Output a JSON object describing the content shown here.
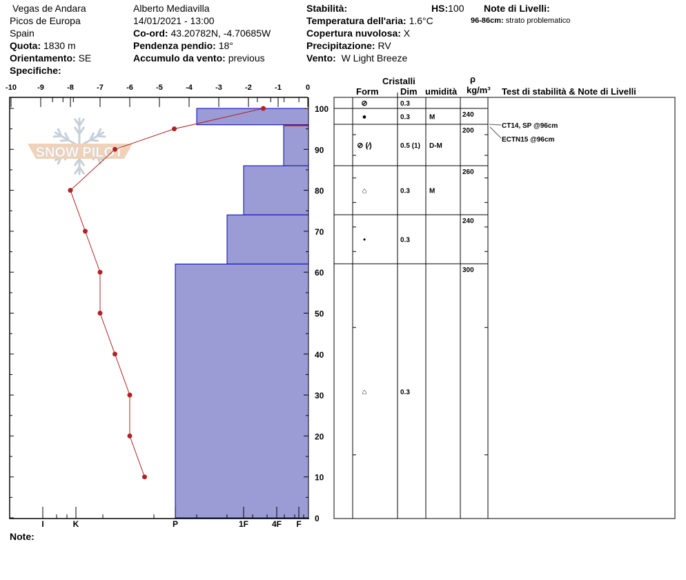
{
  "header": {
    "location": "Vegas de Andara",
    "range": "Picos de Europa",
    "country": "Spain",
    "quota_label": "Quota:",
    "quota": "1830 m",
    "orient_label": "Orientamento:",
    "orient": "SE",
    "spec_label": "Specifiche:",
    "observer": "Alberto Mediavilla",
    "datetime": "14/01/2021 - 13:00",
    "coord_label": "Co-ord:",
    "coord": "43.20782N, -4.70685W",
    "slope_label": "Pendenza pendio:",
    "slope": "18°",
    "wind_load_label": "Accumulo da vento:",
    "wind_load": "previous",
    "stab_label": "Stabilità:",
    "hs_label": "HS:",
    "hs": "100",
    "air_label": "Temperatura dell'aria:",
    "air": "1.6°C",
    "cloud_label": "Copertura nuvolosa:",
    "cloud": "X",
    "precip_label": "Precipitazione:",
    "precip": "RV",
    "wind_label": "Vento:",
    "wind": "W Light Breeze",
    "notes_title": "Note di Livelli:",
    "note_range": "96-86cm:",
    "note_text": "strato problematico",
    "note_label": "Note:"
  },
  "table": {
    "cristalli": "Cristalli",
    "form": "Form",
    "dim": "Dim",
    "umid": "umidità",
    "rho": "ρ",
    "rho_unit": "kg/m³",
    "tests": "Test di stabilità & Note di Livelli",
    "rows": [
      {
        "form": "⊘",
        "dim": "0.3",
        "umid": "",
        "rho": ""
      },
      {
        "form": "●",
        "dim": "0.3",
        "umid": "M",
        "rho": "240"
      },
      {
        "form": "⊘ (⁄)",
        "dim": "0.5 (1)",
        "umid": "D-M",
        "rho": "200"
      },
      {
        "form": "⌂",
        "dim": "0.3",
        "umid": "M",
        "rho": "260"
      },
      {
        "form": "•",
        "dim": "0.3",
        "umid": "",
        "rho": "240"
      },
      {
        "form": "⌂",
        "dim": "0.3",
        "umid": "",
        "rho": "300"
      }
    ],
    "tests_list": [
      "CT14, SP @96cm",
      "ECTN15 @96cm"
    ]
  },
  "logo": "SNOW PILOT",
  "chart_data": {
    "type": "line",
    "temp_axis": {
      "ticks": [
        "-10",
        "-9",
        "-8",
        "-7",
        "-6",
        "-5",
        "-4",
        "-3",
        "-2",
        "-1",
        "0"
      ],
      "range": [
        -10,
        0
      ]
    },
    "depth_axis": {
      "ticks": [
        "0",
        "10",
        "20",
        "30",
        "40",
        "50",
        "60",
        "70",
        "80",
        "90",
        "100"
      ],
      "range": [
        0,
        100
      ]
    },
    "hardness_ticks": [
      "I",
      "K",
      "P",
      "1F",
      "4F",
      "F"
    ],
    "temperature": [
      {
        "depth": 100,
        "t": -1.5
      },
      {
        "depth": 95,
        "t": -4.5
      },
      {
        "depth": 90,
        "t": -6.5
      },
      {
        "depth": 80,
        "t": -8
      },
      {
        "depth": 70,
        "t": -7.5
      },
      {
        "depth": 60,
        "t": -7
      },
      {
        "depth": 50,
        "t": -7
      },
      {
        "depth": 40,
        "t": -6.5
      },
      {
        "depth": 30,
        "t": -6
      },
      {
        "depth": 20,
        "t": -6
      },
      {
        "depth": 10,
        "t": -5.5
      }
    ],
    "layers": [
      {
        "top": 100,
        "bottom": 96,
        "hardness": "P-"
      },
      {
        "top": 96,
        "bottom": 86,
        "hardness": "4F-"
      },
      {
        "top": 86,
        "bottom": 74,
        "hardness": "1F"
      },
      {
        "top": 74,
        "bottom": 62,
        "hardness": "1F+"
      },
      {
        "top": 62,
        "bottom": 0,
        "hardness": "P"
      }
    ],
    "problem_layer_depth": 96,
    "colors": {
      "hardness": "#9b9bd5",
      "hardness_edge": "#0000c0",
      "temp": "#b22222"
    }
  }
}
